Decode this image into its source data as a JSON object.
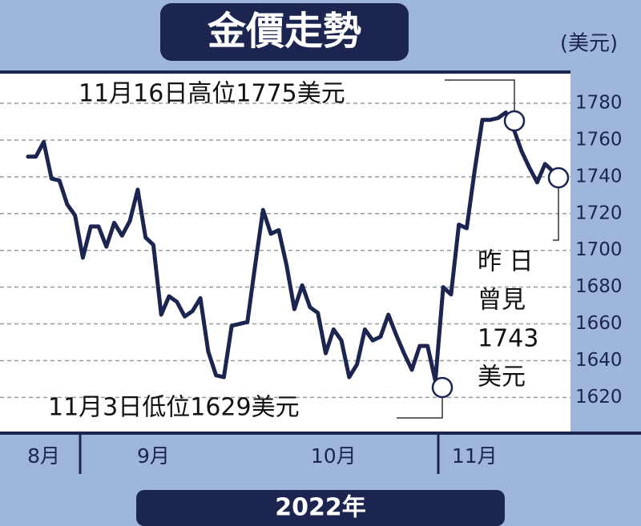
{
  "chart_data": {
    "type": "line",
    "title": "金價走勢",
    "y_label": "(美元)",
    "x_label": "2022年",
    "color": "#1b2550",
    "categories": [
      null,
      null,
      "8月",
      null,
      null,
      null,
      null,
      null,
      null,
      null,
      null,
      null,
      null,
      null,
      null,
      null,
      "9月",
      null,
      null,
      null,
      null,
      null,
      null,
      null,
      null,
      null,
      null,
      null,
      null,
      null,
      null,
      null,
      null,
      null,
      null,
      null,
      null,
      null,
      null,
      "10月",
      null,
      null,
      null,
      null,
      null,
      null,
      null,
      null,
      null,
      null,
      null,
      null,
      null,
      null,
      null,
      null,
      null,
      "11月",
      null,
      null,
      null,
      null,
      null,
      null,
      null,
      null,
      null,
      null
    ],
    "values": [
      1751,
      1751,
      1759,
      1739,
      1738,
      1725,
      1719,
      1696,
      1713,
      1713,
      1702,
      1715,
      1708,
      1716,
      1733,
      1707,
      1703,
      1665,
      1675,
      1672,
      1664,
      1667,
      1674,
      1645,
      1632,
      1631,
      1659,
      1660,
      1661,
      1692,
      1722,
      1709,
      1711,
      1692,
      1668,
      1681,
      1669,
      1666,
      1644,
      1657,
      1651,
      1631,
      1638,
      1657,
      1651,
      1653,
      1665,
      1654,
      1644,
      1635,
      1648,
      1648,
      1629,
      1680,
      1676,
      1714,
      1712,
      1743,
      1771,
      1771,
      1772,
      1775,
      1766,
      1754,
      1745,
      1737,
      1747,
      1743
    ],
    "ylim": [
      1601,
      1797
    ],
    "yticks": [
      1620,
      1640,
      1660,
      1680,
      1700,
      1720,
      1740,
      1760,
      1780
    ],
    "grid": true,
    "annotations": [
      "11月16日高位1775美元",
      "11月3日低位1629美元",
      "昨 日",
      "曾見",
      "1743",
      "美元"
    ]
  }
}
